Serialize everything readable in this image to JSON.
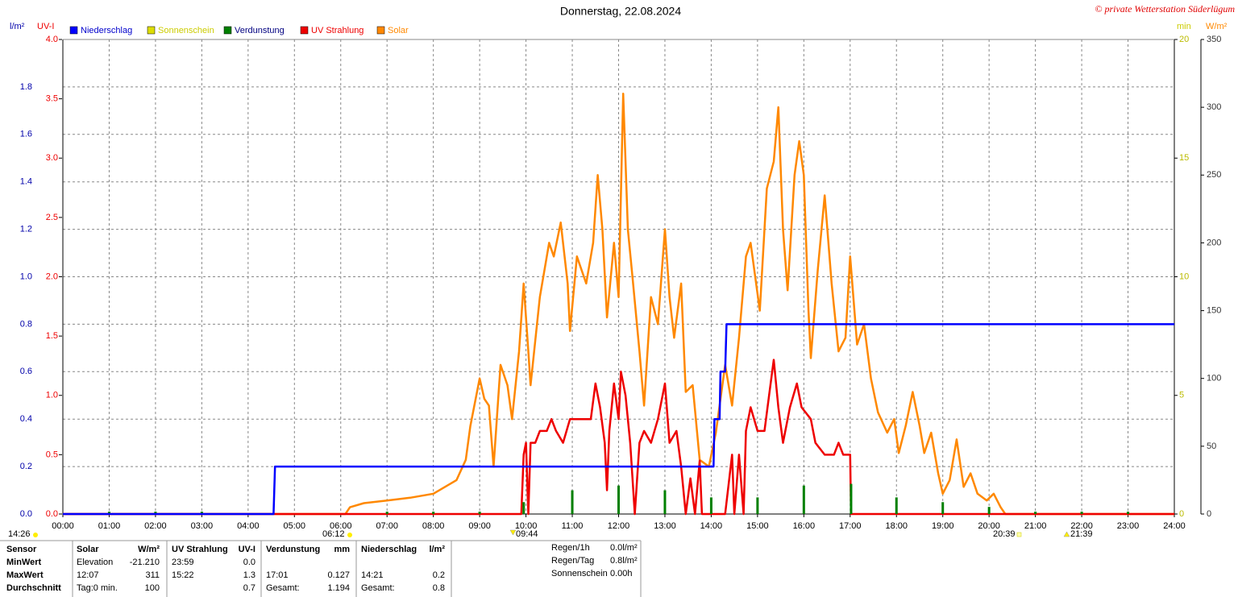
{
  "chart_data": {
    "type": "line",
    "title": "Donnerstag, 22.08.2024",
    "copyright": "© private Wetterstation Süderlügum",
    "y_label": "l/m²",
    "y2_label": "UV-I",
    "y3_label": "min",
    "y4_label": "W/m²",
    "xlim": [
      0,
      24
    ],
    "xticks": [
      {
        "value": 0,
        "label": "00:00"
      },
      {
        "value": 1,
        "label": "01:00"
      },
      {
        "value": 2,
        "label": "02:00"
      },
      {
        "value": 3,
        "label": "03:00"
      },
      {
        "value": 4,
        "label": "04:00"
      },
      {
        "value": 5,
        "label": "05:00"
      },
      {
        "value": 6,
        "label": "06:00"
      },
      {
        "value": 7,
        "label": "07:00"
      },
      {
        "value": 8,
        "label": "08:00"
      },
      {
        "value": 9,
        "label": "09:00"
      },
      {
        "value": 10,
        "label": "10:00"
      },
      {
        "value": 11,
        "label": "11:00"
      },
      {
        "value": 12,
        "label": "12:00"
      },
      {
        "value": 13,
        "label": "13:00"
      },
      {
        "value": 14,
        "label": "14:00"
      },
      {
        "value": 15,
        "label": "15:00"
      },
      {
        "value": 16,
        "label": "16:00"
      },
      {
        "value": 17,
        "label": "17:00"
      },
      {
        "value": 18,
        "label": "18:00"
      },
      {
        "value": 19,
        "label": "19:00"
      },
      {
        "value": 20,
        "label": "20:00"
      },
      {
        "value": 21,
        "label": "21:00"
      },
      {
        "value": 22,
        "label": "22:00"
      },
      {
        "value": 23,
        "label": "23:00"
      },
      {
        "value": 24,
        "label": "24:00"
      }
    ],
    "ylim": [
      0,
      2
    ],
    "yticks": [
      {
        "value": 0,
        "label": "0.0"
      },
      0.2,
      0.4,
      0.6,
      0.8,
      {
        "value": 1,
        "label": "1.0"
      },
      1.2,
      1.4,
      1.6,
      1.8
    ],
    "y2lim": [
      0,
      4
    ],
    "y2ticks": [
      {
        "value": 0,
        "label": "0.0"
      },
      0.5,
      {
        "value": 1,
        "label": "1.0"
      },
      1.5,
      {
        "value": 2,
        "label": "2.0"
      },
      2.5,
      {
        "value": 3,
        "label": "3.0"
      },
      3.5,
      {
        "value": 4,
        "label": "4.0"
      }
    ],
    "y3lim": [
      0,
      20
    ],
    "y3ticks": [
      0,
      5,
      10,
      15,
      20
    ],
    "y4lim": [
      0,
      350
    ],
    "y4ticks": [
      0,
      50,
      100,
      150,
      200,
      250,
      300,
      350
    ],
    "grid": true,
    "series": [
      {
        "name": "Niederschlag",
        "color": "#0000ff",
        "axis": "y",
        "kind": "line",
        "x": [
          0,
          4.55,
          4.58,
          14.05,
          14.07,
          14.18,
          14.2,
          14.3,
          14.33,
          24
        ],
        "values": [
          0,
          0,
          0.2,
          0.2,
          0.4,
          0.4,
          0.6,
          0.6,
          0.8,
          0.8
        ]
      },
      {
        "name": "Sonnenschein",
        "color": "#dddd00",
        "axis": "y3",
        "kind": "line",
        "x": [],
        "values": []
      },
      {
        "name": "Verdunstung",
        "color": "#008000",
        "axis": "y",
        "kind": "bar",
        "x": [
          1,
          2,
          3,
          7,
          8,
          9,
          9.95,
          11,
          12,
          13,
          14,
          15,
          16,
          17.02,
          18,
          19,
          20,
          21,
          22,
          23
        ],
        "values": [
          0.01,
          0.01,
          0.01,
          0.01,
          0.01,
          0.01,
          0.05,
          0.1,
          0.12,
          0.1,
          0.07,
          0.07,
          0.12,
          0.127,
          0.07,
          0.05,
          0.03,
          0.01,
          0.01,
          0.01
        ]
      },
      {
        "name": "UV Strahlung",
        "color": "#ee0000",
        "axis": "y2",
        "kind": "line",
        "x": [
          0,
          9.9,
          9.95,
          10.0,
          10.05,
          10.1,
          10.2,
          10.3,
          10.45,
          10.55,
          10.65,
          10.8,
          10.95,
          11.2,
          11.4,
          11.5,
          11.6,
          11.7,
          11.75,
          11.8,
          11.9,
          12.0,
          12.05,
          12.15,
          12.25,
          12.35,
          12.45,
          12.55,
          12.7,
          12.85,
          13.0,
          13.1,
          13.25,
          13.35,
          13.45,
          13.55,
          13.65,
          13.75,
          13.8,
          14.3,
          14.45,
          14.5,
          14.6,
          14.7,
          14.75,
          14.85,
          15.0,
          15.15,
          15.25,
          15.35,
          15.45,
          15.55,
          15.7,
          15.85,
          15.95,
          16.15,
          16.25,
          16.45,
          16.65,
          16.75,
          16.85,
          17.0,
          17.02,
          24
        ],
        "values": [
          0,
          0,
          0.5,
          0.6,
          0,
          0.6,
          0.6,
          0.7,
          0.7,
          0.8,
          0.7,
          0.6,
          0.8,
          0.8,
          0.8,
          1.1,
          0.9,
          0.6,
          0.2,
          0.7,
          1.1,
          0.8,
          1.2,
          1.0,
          0.6,
          0,
          0.6,
          0.7,
          0.6,
          0.8,
          1.1,
          0.6,
          0.7,
          0.4,
          0,
          0.3,
          0,
          0.45,
          0,
          0,
          0.5,
          0,
          0.5,
          0,
          0.7,
          0.9,
          0.7,
          0.7,
          1.0,
          1.3,
          0.9,
          0.6,
          0.9,
          1.1,
          0.9,
          0.8,
          0.6,
          0.5,
          0.5,
          0.6,
          0.5,
          0.5,
          0,
          0
        ]
      },
      {
        "name": "Solar",
        "color": "#ff8800",
        "axis": "y4",
        "kind": "line",
        "x": [
          0,
          6.1,
          6.2,
          6.5,
          7.0,
          7.5,
          8.0,
          8.5,
          8.7,
          8.8,
          9.0,
          9.1,
          9.2,
          9.3,
          9.45,
          9.6,
          9.7,
          9.85,
          9.95,
          10.05,
          10.1,
          10.3,
          10.5,
          10.6,
          10.75,
          10.9,
          10.95,
          11.1,
          11.3,
          11.45,
          11.55,
          11.65,
          11.75,
          11.9,
          12.0,
          12.1,
          12.2,
          12.3,
          12.45,
          12.55,
          12.7,
          12.85,
          13.0,
          13.1,
          13.2,
          13.35,
          13.45,
          13.6,
          13.75,
          13.95,
          14.1,
          14.3,
          14.45,
          14.6,
          14.75,
          14.85,
          14.95,
          15.05,
          15.2,
          15.35,
          15.45,
          15.55,
          15.65,
          15.8,
          15.9,
          16.0,
          16.1,
          16.15,
          16.3,
          16.45,
          16.6,
          16.75,
          16.9,
          17.0,
          17.15,
          17.3,
          17.45,
          17.6,
          17.8,
          17.95,
          18.05,
          18.2,
          18.35,
          18.5,
          18.6,
          18.75,
          18.9,
          19.0,
          19.15,
          19.3,
          19.45,
          19.6,
          19.75,
          19.95,
          20.1,
          20.25,
          20.35,
          24
        ],
        "values": [
          0,
          0,
          5,
          8,
          10,
          12,
          15,
          25,
          40,
          65,
          100,
          85,
          80,
          35,
          110,
          95,
          70,
          120,
          170,
          120,
          95,
          160,
          200,
          190,
          215,
          170,
          135,
          190,
          170,
          200,
          250,
          210,
          145,
          200,
          160,
          310,
          210,
          175,
          120,
          80,
          160,
          140,
          210,
          160,
          130,
          170,
          90,
          95,
          40,
          35,
          60,
          110,
          80,
          130,
          190,
          200,
          175,
          150,
          240,
          260,
          300,
          210,
          165,
          250,
          275,
          250,
          150,
          115,
          180,
          235,
          170,
          120,
          130,
          190,
          125,
          140,
          100,
          75,
          60,
          70,
          45,
          65,
          90,
          65,
          45,
          60,
          30,
          15,
          25,
          55,
          20,
          30,
          15,
          10,
          15,
          5,
          0,
          0
        ]
      }
    ],
    "markers": [
      "14:26",
      "06:12",
      "09:44",
      "20:39",
      "21:39"
    ]
  },
  "table": {
    "header": [
      "Sensor",
      "Solar",
      "W/m²",
      "UV Strahlung",
      "UV-I",
      "Verdunstung",
      "mm",
      "Niederschlag",
      "l/m²"
    ],
    "rows": [
      [
        "MinWert",
        "Elevation",
        "-21.210",
        "23:59",
        "0.0",
        null,
        null,
        null,
        null
      ],
      [
        "MaxWert",
        "12:07",
        "311",
        "15:22",
        "1.3",
        "17:01",
        "0.127",
        "14:21",
        "0.2"
      ],
      [
        "Durchschnitt",
        "Tag:0 min.",
        "100",
        null,
        "0.7",
        "Gesamt:",
        "1.194",
        "Gesamt:",
        "0.8"
      ]
    ],
    "stats": [
      [
        "Regen/1h",
        "0.0l/m²"
      ],
      [
        "Regen/Tag",
        "0.8l/m²"
      ],
      [
        "Sonnenschein",
        "0.00h"
      ]
    ]
  }
}
